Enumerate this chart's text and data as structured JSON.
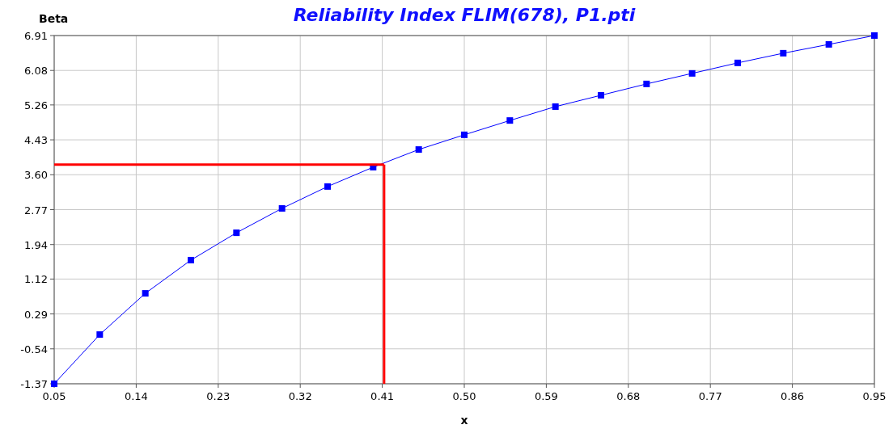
{
  "chart_data": {
    "type": "line",
    "title": "Reliability Index FLIM(678), P1.pti",
    "xlabel": "x",
    "ylabel": "Beta",
    "x": [
      0.05,
      0.1,
      0.15,
      0.2,
      0.25,
      0.3,
      0.35,
      0.4,
      0.45,
      0.5,
      0.55,
      0.6,
      0.65,
      0.7,
      0.75,
      0.8,
      0.85,
      0.9,
      0.95
    ],
    "series": [
      {
        "color": "#0000ff",
        "values": [
          -1.37,
          -0.2,
          0.78,
          1.57,
          2.22,
          2.8,
          3.32,
          3.78,
          4.2,
          4.55,
          4.89,
          5.22,
          5.49,
          5.76,
          6.01,
          6.26,
          6.49,
          6.7,
          6.91
        ]
      }
    ],
    "xlim": [
      0.05,
      0.95
    ],
    "xticks": [
      0.05,
      0.14,
      0.23,
      0.32,
      0.41,
      {
        "value": 0.5,
        "label": "0.50"
      },
      0.59,
      0.68,
      0.77,
      0.86,
      0.95
    ],
    "ylim": [
      -1.37,
      6.91
    ],
    "yticks": [
      -1.37,
      -0.54,
      0.29,
      1.12,
      1.94,
      2.77,
      {
        "value": 3.6,
        "label": "3.60"
      },
      4.43,
      5.26,
      6.08,
      6.91
    ],
    "ref_lines": [
      {
        "axis": "x",
        "value": 0.412,
        "color": "#ff0000"
      },
      {
        "axis": "y",
        "value": 3.84,
        "color": "#ff0000"
      }
    ],
    "grid": true,
    "marker": "square",
    "line_style": "solid"
  }
}
